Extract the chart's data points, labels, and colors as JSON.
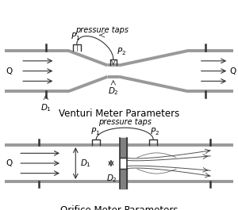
{
  "bg_color": "#ffffff",
  "pipe_color": "#999999",
  "line_color": "#555555",
  "dark_line": "#333333",
  "title1": "Venturi Meter Parameters",
  "title2": "Orifice Meter Parameters",
  "pressure_taps_label": "pressure taps",
  "title_fontsize": 8.5,
  "label_fontsize": 7.5,
  "annotation_fontsize": 7
}
